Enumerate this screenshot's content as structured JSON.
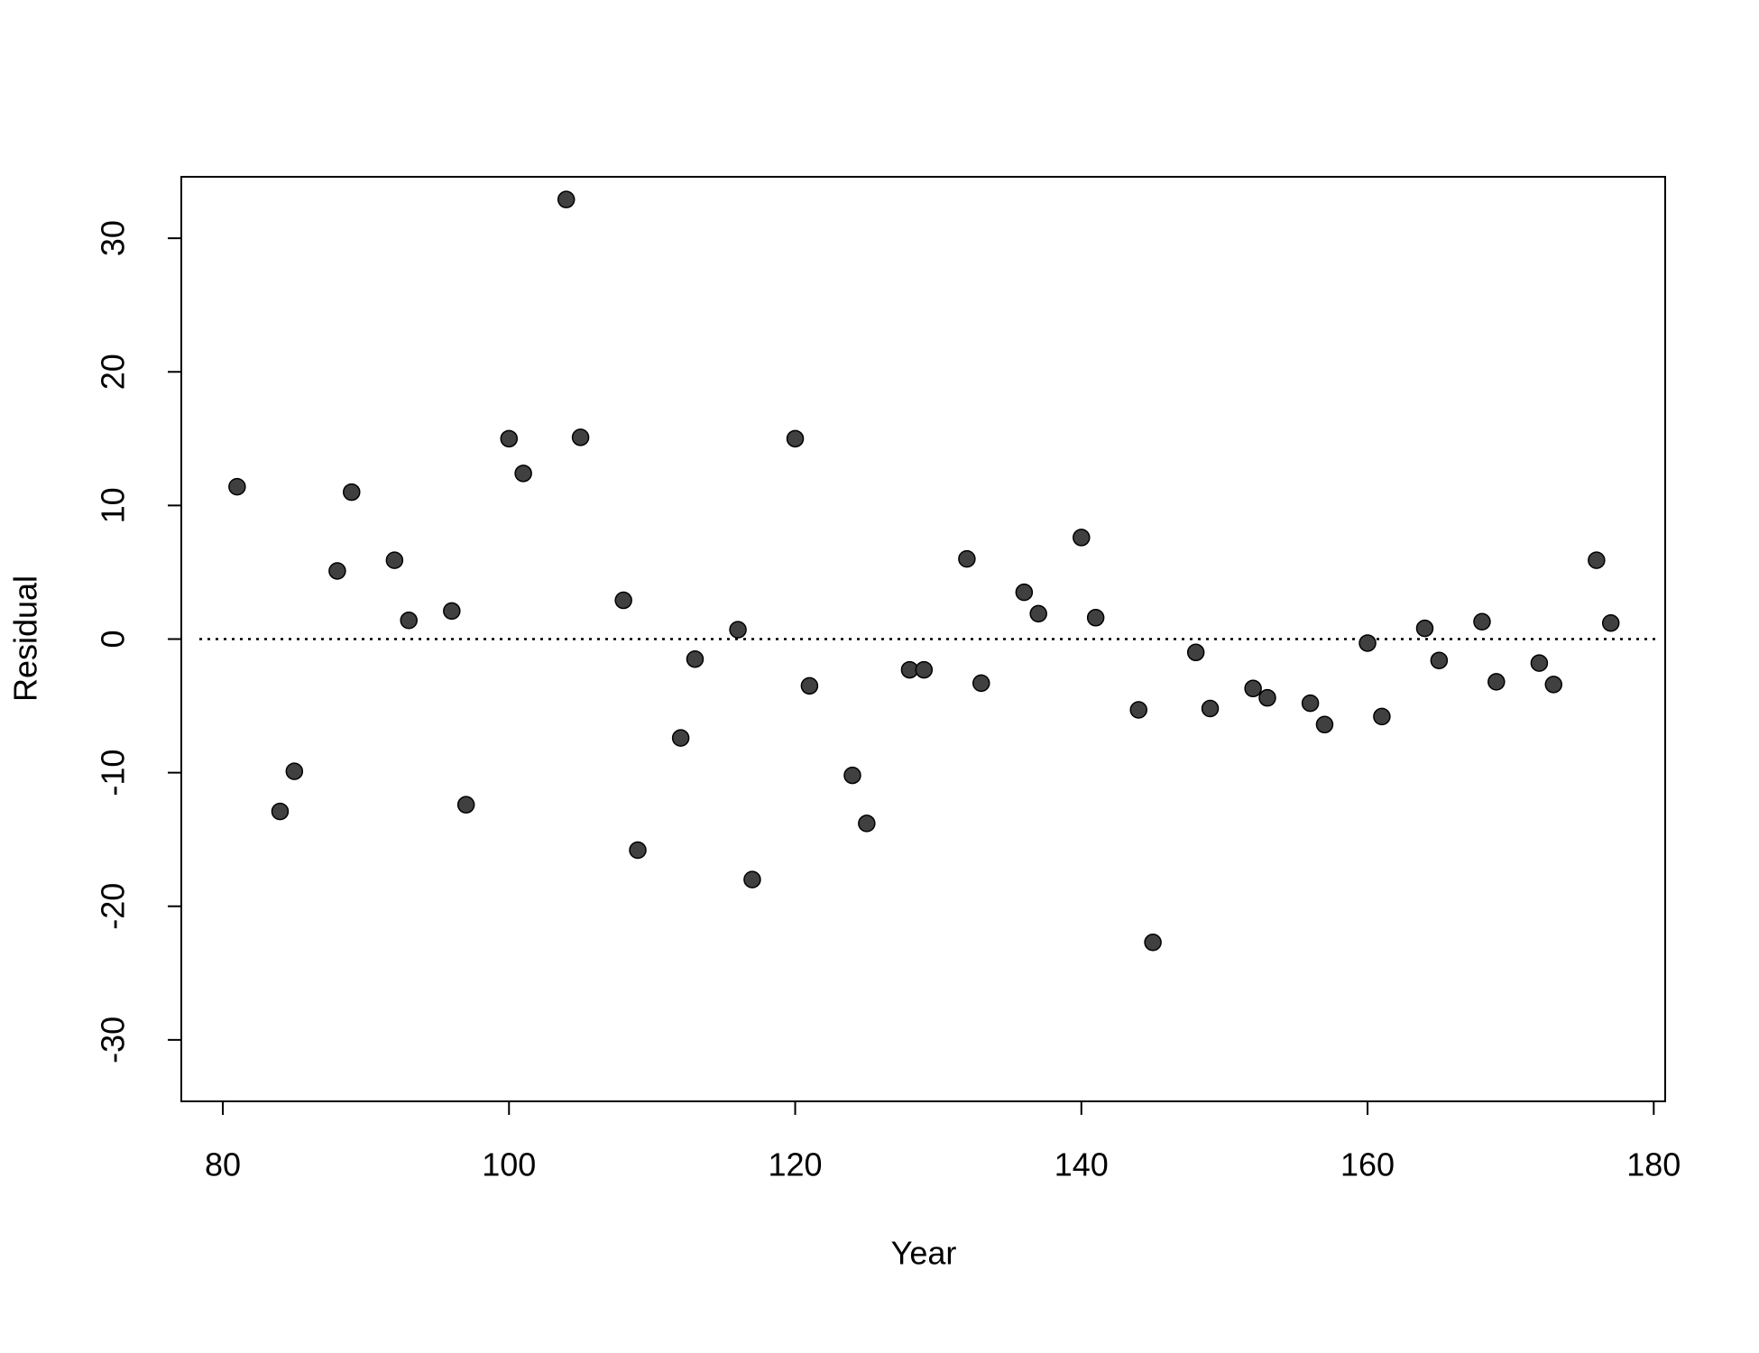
{
  "chart_data": {
    "type": "scatter",
    "x_label": "Year",
    "y_label": "Residual",
    "series": [
      {
        "color": "#404040",
        "x": [
          81,
          84,
          85,
          88,
          89,
          92,
          93,
          96,
          97,
          100,
          101,
          104,
          105,
          108,
          109,
          112,
          113,
          116,
          117,
          120,
          121,
          124,
          125,
          128,
          129,
          132,
          133,
          136,
          137,
          140,
          141,
          144,
          145,
          148,
          149,
          152,
          153,
          156,
          157,
          160,
          161,
          164,
          165,
          168,
          169,
          172,
          173,
          176,
          177
        ],
        "values": [
          11.4,
          -12.9,
          -9.9,
          5.1,
          11.0,
          5.9,
          1.4,
          2.1,
          -12.4,
          15.0,
          12.4,
          32.9,
          15.1,
          2.9,
          -15.8,
          -7.4,
          -1.5,
          0.7,
          -18.0,
          15.0,
          -3.5,
          -10.2,
          -13.8,
          -2.3,
          -2.3,
          6.0,
          -3.3,
          3.5,
          1.9,
          7.6,
          1.6,
          -5.3,
          -22.7,
          -1.0,
          -5.2,
          -3.7,
          -4.4,
          -4.8,
          -6.4,
          -0.3,
          -5.8,
          0.8,
          -1.6,
          1.3,
          -3.2,
          -1.8,
          -3.4,
          5.9,
          1.2
        ]
      }
    ],
    "hline": 0,
    "xlim": [
      77.1,
      180.8
    ],
    "xticks": [
      80,
      100,
      120,
      140,
      160,
      180
    ],
    "ylim": [
      -34.6,
      34.6
    ],
    "yticks": [
      -30,
      -20,
      -10,
      0,
      10,
      20,
      30
    ]
  }
}
